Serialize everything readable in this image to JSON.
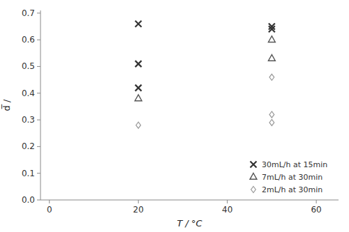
{
  "chart_data": {
    "type": "scatter",
    "xlabel": "T / °C",
    "ylabel": "d̅ /",
    "xlim": [
      -2,
      65
    ],
    "ylim": [
      0.0,
      0.71
    ],
    "xticks": [
      0,
      20,
      40,
      60
    ],
    "yticks": [
      {
        "value": 0.0,
        "label": "0.0"
      },
      0.1,
      0.2,
      0.3,
      0.4,
      0.5,
      0.6,
      0.7
    ],
    "grid": false,
    "legend": "lower right",
    "series": [
      {
        "name": "30mL/h at 15min",
        "color": "#333333",
        "marker": "x",
        "x": [
          20,
          20,
          20,
          50,
          50
        ],
        "values": [
          0.42,
          0.51,
          0.66,
          0.64,
          0.65
        ]
      },
      {
        "name": "7mL/h at 30min",
        "color": "#555555",
        "marker": "triangle-open",
        "x": [
          20,
          50,
          50
        ],
        "values": [
          0.38,
          0.53,
          0.6
        ]
      },
      {
        "name": "2mL/h at 30min",
        "color": "#999999",
        "marker": "diamond-open",
        "x": [
          20,
          50,
          50,
          50
        ],
        "values": [
          0.28,
          0.29,
          0.32,
          0.46
        ]
      }
    ]
  }
}
